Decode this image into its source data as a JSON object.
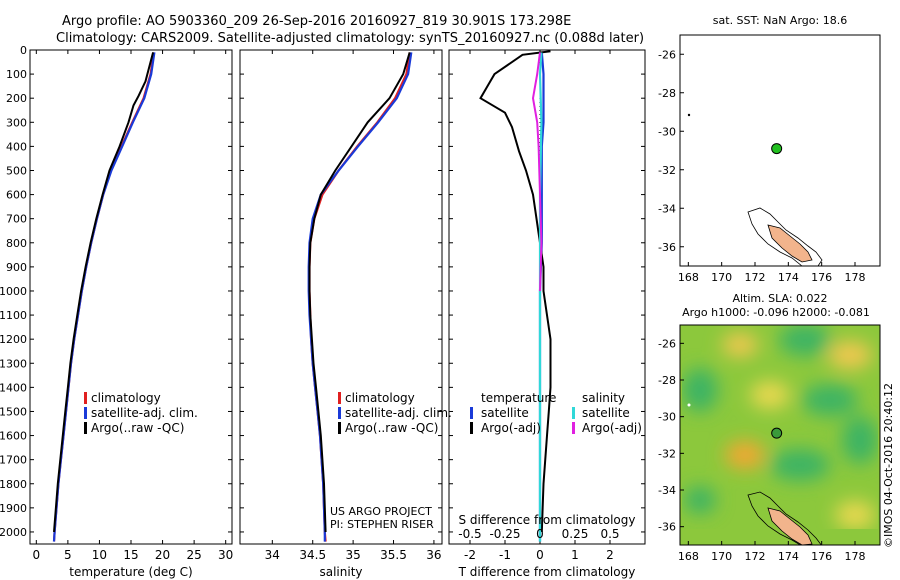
{
  "header": {
    "line1": "Argo profile: AO 5903360_209 26-Sep-2016 20160927_819 30.901S 173.298E",
    "line2": "Climatology: CARS2009. Satellite-adjusted climatology: synTS_20160927.nc (0.088d later)"
  },
  "colors": {
    "climatology": "#e02020",
    "satellite": "#1a3ad8",
    "argo": "#000000",
    "cyan": "#30d8d8",
    "magenta": "#e020e0",
    "land": "#f2b48c",
    "float": "#22c020"
  },
  "credits": {
    "line1": "US ARGO PROJECT",
    "line2": "PI: STEPHEN RISER"
  },
  "watermark": "©IMOS 04-Oct-2016 20:40:12",
  "chart_data": [
    {
      "type": "line",
      "id": "temperature",
      "xlabel": "temperature (deg C)",
      "xlim": [
        -1,
        31
      ],
      "ylim": [
        2050,
        0
      ],
      "xticks": [
        0,
        5,
        10,
        15,
        20,
        25,
        30
      ],
      "yticks": [
        0,
        100,
        200,
        300,
        400,
        500,
        600,
        700,
        800,
        900,
        1000,
        1100,
        1200,
        1300,
        1400,
        1500,
        1600,
        1700,
        1800,
        1900,
        2000
      ],
      "legend": [
        "climatology",
        "satellite-adj. clim.",
        "Argo(..raw -QC)"
      ],
      "series": [
        {
          "name": "climatology",
          "color": "#e02020",
          "points": [
            [
              18.6,
              10
            ],
            [
              18.1,
              100
            ],
            [
              17.0,
              200
            ],
            [
              15.2,
              300
            ],
            [
              13.5,
              400
            ],
            [
              11.8,
              500
            ],
            [
              10.6,
              600
            ],
            [
              9.6,
              700
            ],
            [
              8.7,
              800
            ],
            [
              7.9,
              900
            ],
            [
              7.2,
              1000
            ],
            [
              6.6,
              1100
            ],
            [
              6.0,
              1200
            ],
            [
              5.5,
              1300
            ],
            [
              5.1,
              1400
            ],
            [
              4.7,
              1500
            ],
            [
              4.3,
              1600
            ],
            [
              3.9,
              1700
            ],
            [
              3.5,
              1800
            ],
            [
              3.2,
              1900
            ],
            [
              2.9,
              2000
            ],
            [
              2.8,
              2040
            ]
          ]
        },
        {
          "name": "satellite-adj. clim.",
          "color": "#1a3ad8",
          "points": [
            [
              18.7,
              10
            ],
            [
              18.2,
              100
            ],
            [
              17.1,
              200
            ],
            [
              15.3,
              300
            ],
            [
              13.6,
              400
            ],
            [
              11.9,
              500
            ],
            [
              10.6,
              600
            ],
            [
              9.6,
              700
            ],
            [
              8.7,
              800
            ],
            [
              7.9,
              900
            ],
            [
              7.2,
              1000
            ],
            [
              6.6,
              1100
            ],
            [
              6.0,
              1200
            ],
            [
              5.5,
              1300
            ],
            [
              5.1,
              1400
            ],
            [
              4.7,
              1500
            ],
            [
              4.3,
              1600
            ],
            [
              3.9,
              1700
            ],
            [
              3.5,
              1800
            ],
            [
              3.2,
              1900
            ],
            [
              2.9,
              2000
            ],
            [
              2.8,
              2040
            ]
          ]
        },
        {
          "name": "Argo(..raw -QC)",
          "color": "#000000",
          "points": [
            [
              18.5,
              10
            ],
            [
              18.0,
              60
            ],
            [
              17.3,
              130
            ],
            [
              16.2,
              190
            ],
            [
              15.4,
              230
            ],
            [
              14.6,
              300
            ],
            [
              13.2,
              400
            ],
            [
              11.6,
              500
            ],
            [
              10.5,
              600
            ],
            [
              9.5,
              700
            ],
            [
              8.6,
              800
            ],
            [
              7.8,
              900
            ],
            [
              7.1,
              1000
            ],
            [
              6.5,
              1100
            ],
            [
              5.9,
              1200
            ],
            [
              5.4,
              1300
            ],
            [
              5.0,
              1400
            ],
            [
              4.6,
              1500
            ],
            [
              4.2,
              1600
            ],
            [
              3.8,
              1700
            ],
            [
              3.4,
              1800
            ],
            [
              3.1,
              1900
            ],
            [
              2.8,
              2000
            ]
          ]
        }
      ]
    },
    {
      "type": "line",
      "id": "salinity",
      "xlabel": "salinity",
      "xlim": [
        33.6,
        36.1
      ],
      "ylim": [
        2050,
        0
      ],
      "xticks": [
        34,
        34.5,
        35,
        35.5,
        36
      ],
      "legend": [
        "climatology",
        "satellite-adj. clim.",
        "Argo(..raw -QC)"
      ],
      "series": [
        {
          "name": "climatology",
          "color": "#e02020",
          "points": [
            [
              35.7,
              10
            ],
            [
              35.66,
              100
            ],
            [
              35.52,
              200
            ],
            [
              35.3,
              300
            ],
            [
              35.05,
              400
            ],
            [
              34.82,
              500
            ],
            [
              34.62,
              600
            ],
            [
              34.52,
              700
            ],
            [
              34.47,
              800
            ],
            [
              34.46,
              900
            ],
            [
              34.46,
              1000
            ],
            [
              34.47,
              1100
            ],
            [
              34.48,
              1200
            ],
            [
              34.5,
              1300
            ],
            [
              34.53,
              1400
            ],
            [
              34.56,
              1500
            ],
            [
              34.59,
              1600
            ],
            [
              34.61,
              1700
            ],
            [
              34.63,
              1800
            ],
            [
              34.64,
              1900
            ],
            [
              34.65,
              2000
            ],
            [
              34.66,
              2040
            ]
          ]
        },
        {
          "name": "satellite-adj. clim.",
          "color": "#1a3ad8",
          "points": [
            [
              35.72,
              10
            ],
            [
              35.68,
              100
            ],
            [
              35.54,
              200
            ],
            [
              35.31,
              300
            ],
            [
              35.06,
              400
            ],
            [
              34.82,
              500
            ],
            [
              34.6,
              600
            ],
            [
              34.5,
              700
            ],
            [
              34.46,
              800
            ],
            [
              34.45,
              900
            ],
            [
              34.45,
              1000
            ],
            [
              34.46,
              1100
            ],
            [
              34.48,
              1200
            ],
            [
              34.5,
              1300
            ],
            [
              34.53,
              1400
            ],
            [
              34.56,
              1500
            ],
            [
              34.59,
              1600
            ],
            [
              34.61,
              1700
            ],
            [
              34.63,
              1800
            ],
            [
              34.64,
              1900
            ],
            [
              34.65,
              2000
            ],
            [
              34.65,
              2040
            ]
          ]
        },
        {
          "name": "Argo(..raw -QC)",
          "color": "#000000",
          "points": [
            [
              35.7,
              10
            ],
            [
              35.62,
              100
            ],
            [
              35.45,
              200
            ],
            [
              35.18,
              300
            ],
            [
              34.98,
              400
            ],
            [
              34.78,
              500
            ],
            [
              34.6,
              600
            ],
            [
              34.52,
              700
            ],
            [
              34.47,
              800
            ],
            [
              34.46,
              900
            ],
            [
              34.46,
              1000
            ],
            [
              34.47,
              1100
            ],
            [
              34.49,
              1200
            ],
            [
              34.51,
              1300
            ],
            [
              34.54,
              1400
            ],
            [
              34.57,
              1500
            ],
            [
              34.6,
              1600
            ],
            [
              34.62,
              1700
            ],
            [
              34.64,
              1800
            ],
            [
              34.65,
              1900
            ],
            [
              34.66,
              2000
            ]
          ]
        }
      ]
    },
    {
      "type": "line",
      "id": "difference",
      "xlabel": "T difference from climatology",
      "x2label": "S difference from climatology",
      "xlim": [
        -2.6,
        3.0
      ],
      "ylim": [
        2050,
        0
      ],
      "xticks": [
        -2,
        -1,
        0,
        1,
        2
      ],
      "x2ticks": [
        -0.5,
        -0.25,
        0,
        0.25,
        0.5
      ],
      "legend_temperature": {
        "title": "temperature",
        "items": [
          "satellite",
          "Argo(-adj)"
        ]
      },
      "legend_salinity": {
        "title": "salinity",
        "items": [
          "satellite",
          "Argo(-adj)"
        ]
      },
      "series": [
        {
          "name": "T satellite",
          "color": "#1a3ad8",
          "points": [
            [
              0.05,
              10
            ],
            [
              0.1,
              100
            ],
            [
              0.1,
              200
            ],
            [
              0.1,
              300
            ],
            [
              0.05,
              400
            ],
            [
              0.05,
              600
            ],
            [
              0.05,
              800
            ],
            [
              0.0,
              1000
            ],
            [
              0.0,
              1200
            ],
            [
              0.0,
              1500
            ],
            [
              0.0,
              1800
            ],
            [
              0.0,
              2040
            ]
          ]
        },
        {
          "name": "T Argo(-adj)",
          "color": "#000000",
          "points": [
            [
              0.3,
              5
            ],
            [
              -0.5,
              20
            ],
            [
              -1.3,
              100
            ],
            [
              -1.5,
              150
            ],
            [
              -1.7,
              200
            ],
            [
              -1.0,
              260
            ],
            [
              -0.8,
              320
            ],
            [
              -0.6,
              420
            ],
            [
              -0.4,
              500
            ],
            [
              -0.2,
              600
            ],
            [
              -0.1,
              700
            ],
            [
              0.0,
              800
            ],
            [
              0.1,
              900
            ],
            [
              0.1,
              1000
            ],
            [
              0.2,
              1100
            ],
            [
              0.3,
              1200
            ],
            [
              0.3,
              1300
            ],
            [
              0.3,
              1400
            ],
            [
              0.25,
              1500
            ],
            [
              0.2,
              1600
            ],
            [
              0.1,
              1800
            ],
            [
              0.05,
              2000
            ]
          ]
        },
        {
          "name": "S satellite",
          "color": "#30d8d8",
          "points": [
            [
              0.01,
              10
            ],
            [
              0.0,
              100
            ],
            [
              0.01,
              300
            ],
            [
              0.0,
              600
            ],
            [
              0.0,
              1000
            ],
            [
              0.0,
              1500
            ],
            [
              0.0,
              2040
            ]
          ]
        },
        {
          "name": "S Argo(-adj)",
          "color": "#e020e0",
          "points": [
            [
              0.0,
              10
            ],
            [
              -0.02,
              100
            ],
            [
              -0.05,
              200
            ],
            [
              -0.02,
              300
            ],
            [
              -0.01,
              400
            ],
            [
              0.0,
              600
            ],
            [
              0.01,
              800
            ],
            [
              0.0,
              1000
            ]
          ]
        }
      ]
    },
    {
      "type": "scatter",
      "id": "sst-map",
      "title": "sat. SST: NaN Argo: 18.6",
      "xlim": [
        167.5,
        179.5
      ],
      "ylim": [
        -37,
        -25
      ],
      "xticks": [
        168,
        170,
        172,
        174,
        176,
        178
      ],
      "yticks": [
        -26,
        -28,
        -30,
        -32,
        -34,
        -36
      ],
      "points": [
        {
          "x": 173.3,
          "y": -30.9,
          "label": "float"
        }
      ]
    },
    {
      "type": "heatmap",
      "id": "sla-map",
      "title": "Altim. SLA: 0.022",
      "subtitle": "Argo h1000: -0.096 h2000: -0.081",
      "xlim": [
        167.5,
        179.5
      ],
      "ylim": [
        -37,
        -25
      ],
      "xticks": [
        168,
        170,
        172,
        174,
        176,
        178
      ],
      "yticks": [
        -26,
        -28,
        -30,
        -32,
        -34,
        -36
      ],
      "points": [
        {
          "x": 173.3,
          "y": -30.9,
          "label": "float"
        }
      ]
    }
  ]
}
